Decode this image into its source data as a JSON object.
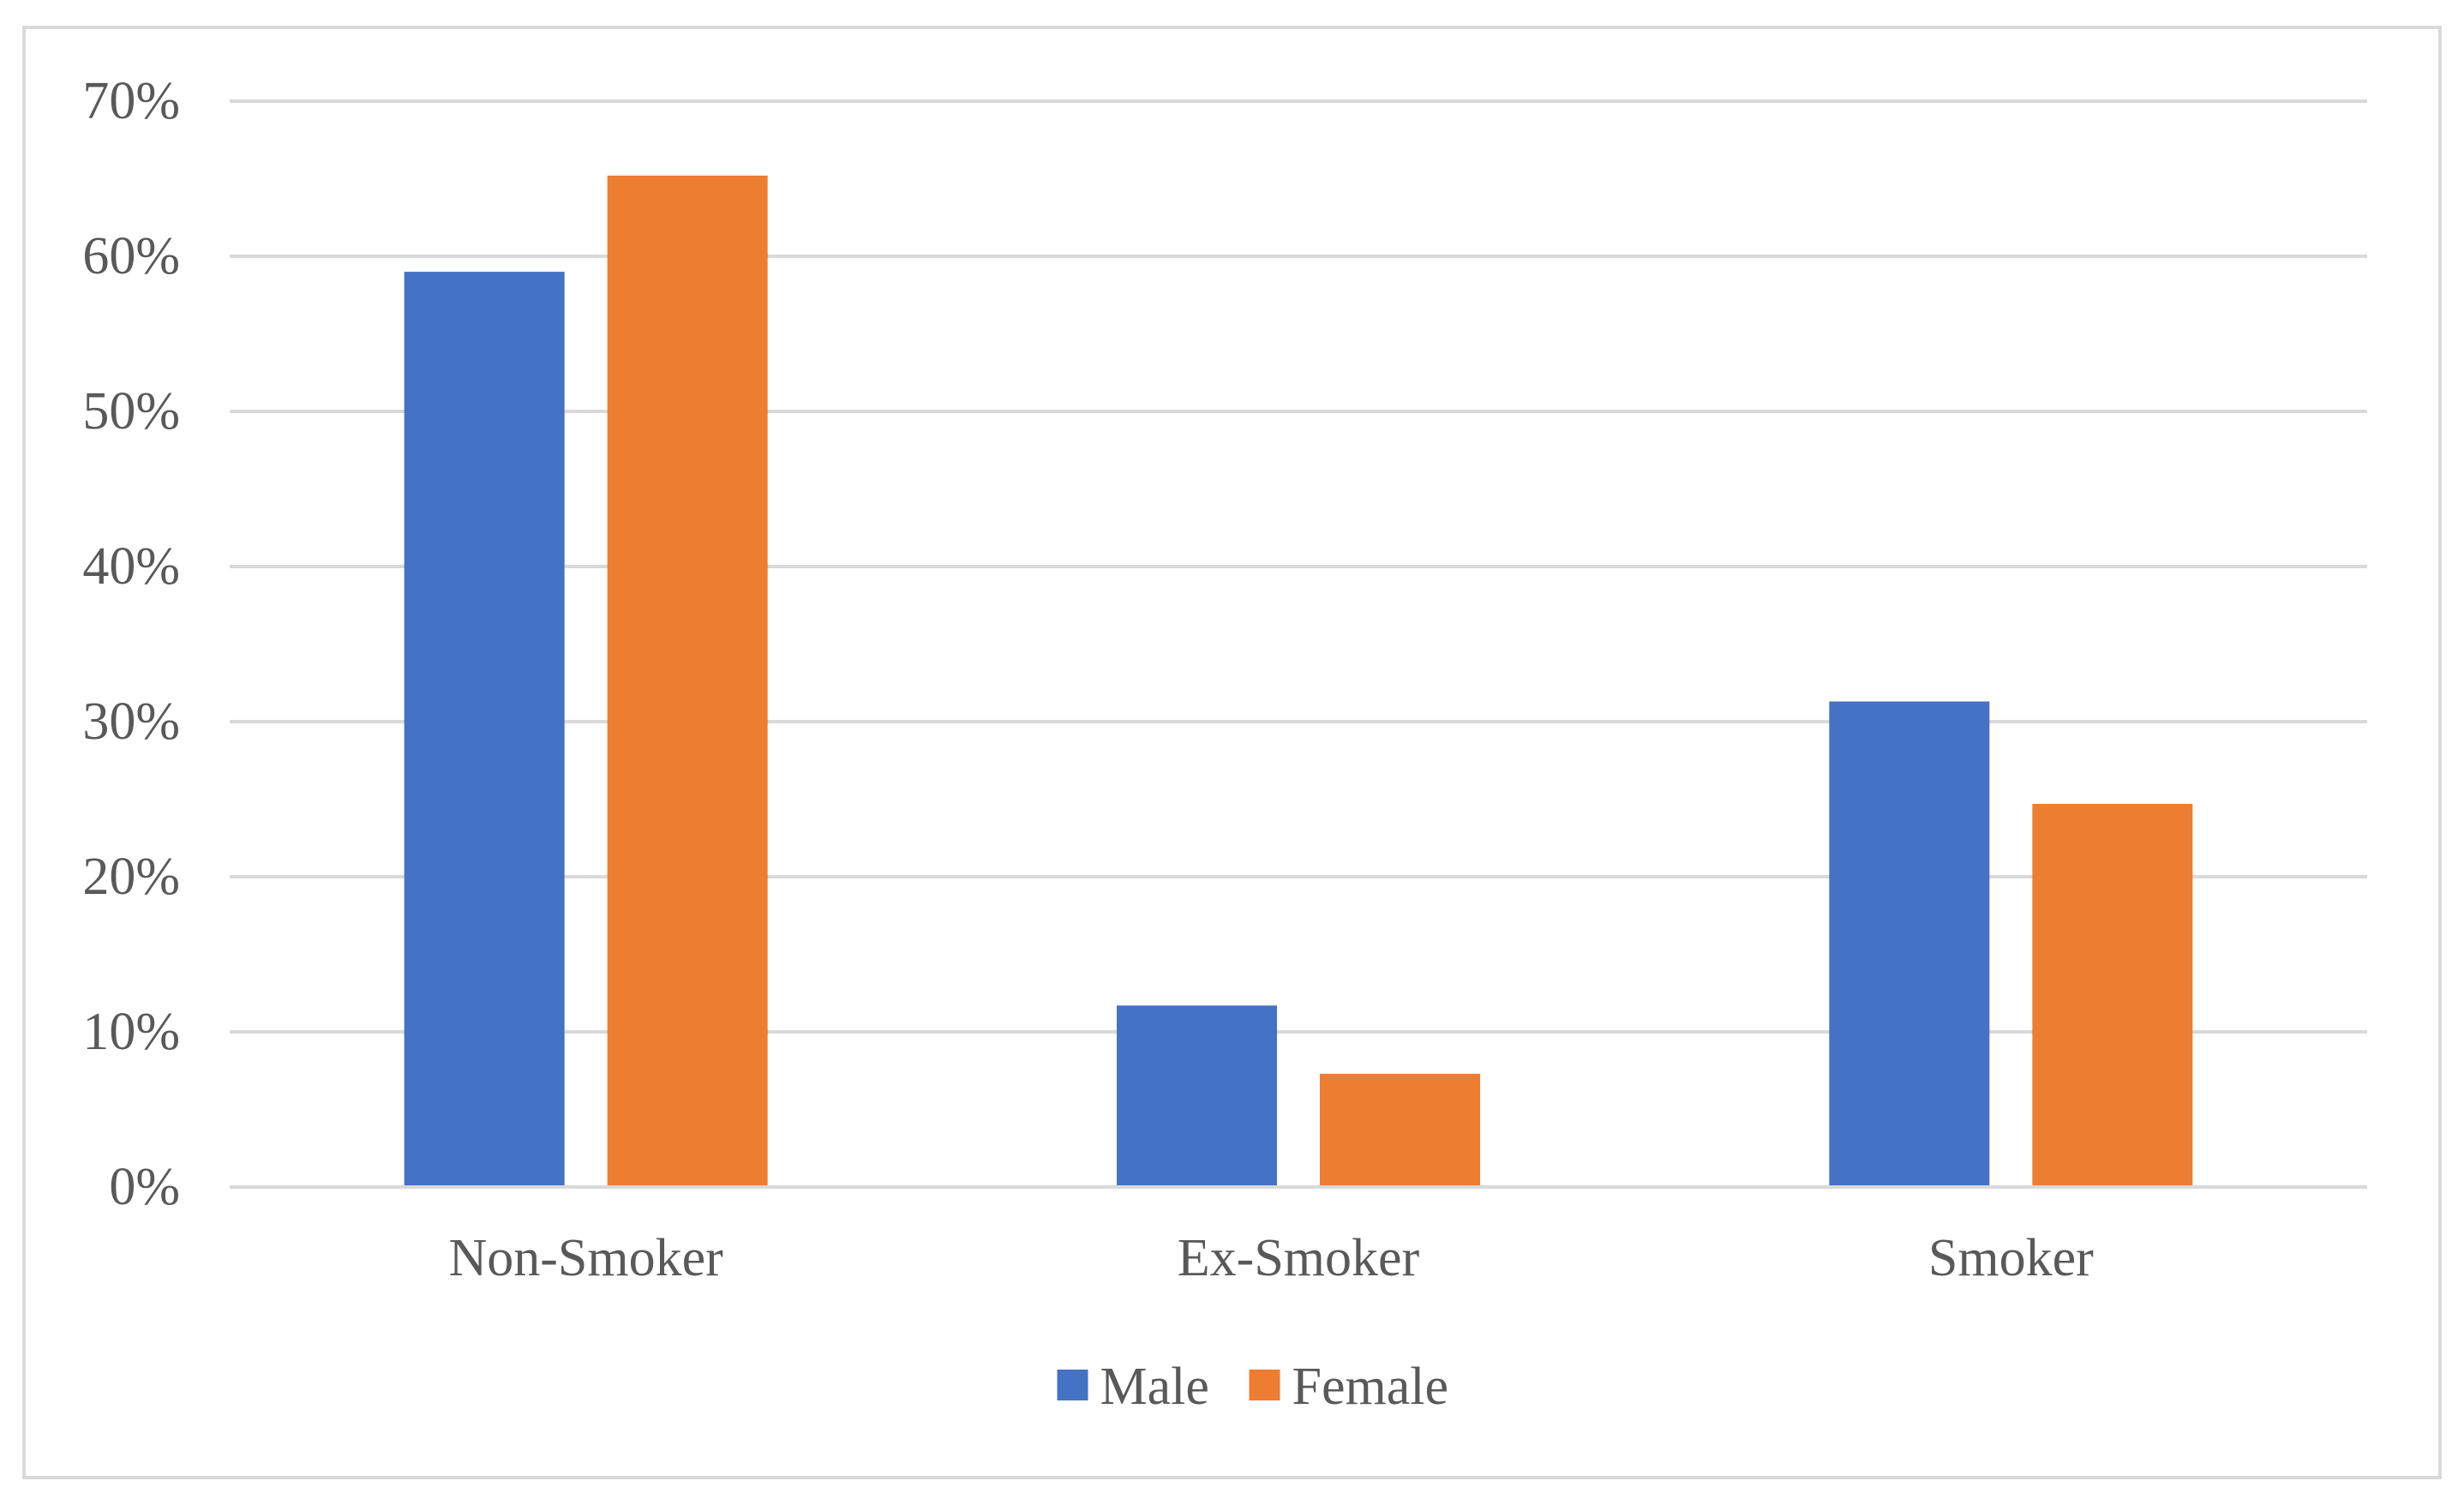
{
  "chart_data": {
    "type": "bar",
    "title": "",
    "xlabel": "",
    "ylabel": "",
    "categories": [
      "Non-Smoker",
      "Ex-Smoker",
      "Smoker"
    ],
    "series": [
      {
        "name": "Male",
        "color": "#4472c4",
        "values": [
          0.59,
          0.117,
          0.313
        ]
      },
      {
        "name": "Female",
        "color": "#ed7d31",
        "values": [
          0.652,
          0.073,
          0.247
        ]
      }
    ],
    "ylim": [
      0,
      0.7
    ],
    "yticks": [
      0,
      0.1,
      0.2,
      0.3,
      0.4,
      0.5,
      0.6,
      0.7
    ],
    "ytick_labels": [
      "0%",
      "10%",
      "20%",
      "30%",
      "40%",
      "50%",
      "60%",
      "70%"
    ],
    "grid": true,
    "gridline_color": "#d9d9d9",
    "legend_position": "bottom"
  }
}
